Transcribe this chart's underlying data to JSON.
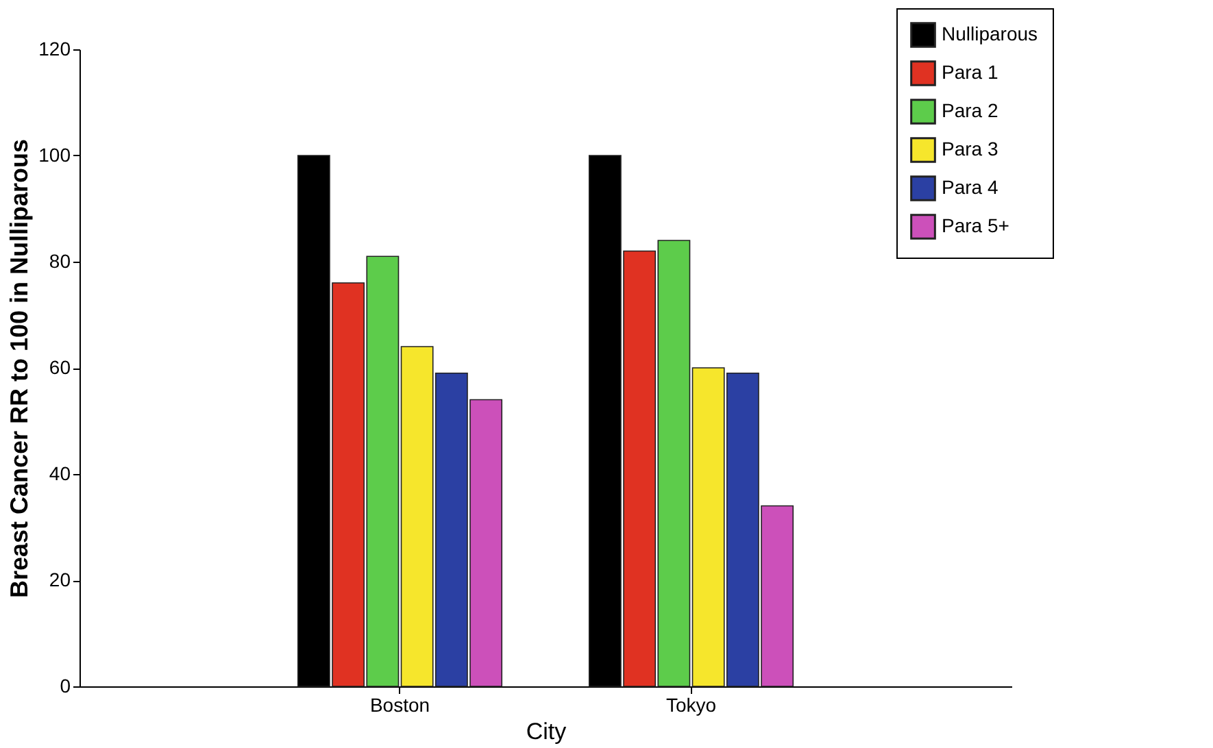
{
  "chart_data": {
    "type": "bar",
    "xlabel": "City",
    "ylabel": "Breast Cancer RR to 100 in Nulliparous",
    "categories": [
      "Boston",
      "Tokyo"
    ],
    "series": [
      {
        "name": "Nulliparous",
        "color": "#000000",
        "values": [
          100,
          100
        ]
      },
      {
        "name": "Para 1",
        "color": "#e03222",
        "values": [
          76,
          82
        ]
      },
      {
        "name": "Para 2",
        "color": "#5dcc4b",
        "values": [
          81,
          84
        ]
      },
      {
        "name": "Para 3",
        "color": "#f6e62c",
        "values": [
          64,
          60
        ]
      },
      {
        "name": "Para 4",
        "color": "#2b40a3",
        "values": [
          59,
          59
        ]
      },
      {
        "name": "Para 5+",
        "color": "#cc50ba",
        "values": [
          54,
          34
        ]
      }
    ],
    "ylim": [
      0,
      120
    ],
    "yticks": [
      0,
      20,
      40,
      60,
      80,
      100,
      120
    ],
    "grid": false,
    "legend": "top right"
  }
}
